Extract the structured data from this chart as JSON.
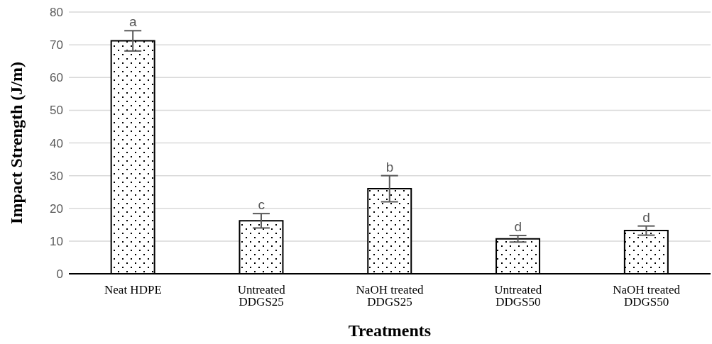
{
  "chart_data": {
    "type": "bar",
    "xlabel": "Treatments",
    "ylabel": "Impact Strength (J/m)",
    "categories": [
      "Neat HDPE",
      "Untreated DDGS25",
      "NaOH treated DDGS25",
      "Untreated DDGS50",
      "NaOH treated DDGS50"
    ],
    "values": [
      71.2,
      16.2,
      26,
      10.7,
      13.2
    ],
    "errors": [
      3.1,
      2.2,
      4,
      1,
      1.4
    ],
    "color": "#000000",
    "ylim": [
      0,
      80
    ],
    "yticks": [
      0,
      10,
      20,
      30,
      40,
      50,
      60,
      70,
      80
    ],
    "grid": "y",
    "annotations": [
      {
        "text": "a",
        "x": "Neat HDPE",
        "y": 74.3
      },
      {
        "text": "c",
        "x": "Untreated DDGS25",
        "y": 18.4
      },
      {
        "text": "b",
        "x": "NaOH treated DDGS25",
        "y": 30
      },
      {
        "text": "d",
        "x": "Untreated DDGS50",
        "y": 11.7
      },
      {
        "text": "d",
        "x": "NaOH treated DDGS50",
        "y": 14.6
      }
    ]
  }
}
